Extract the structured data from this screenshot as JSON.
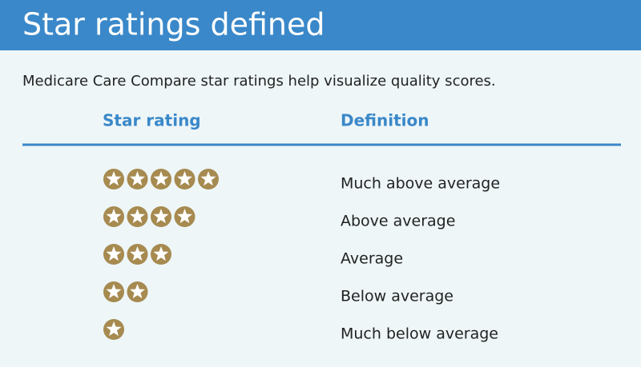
{
  "header": {
    "title": "Star ratings defined"
  },
  "intro": "Medicare Care Compare star ratings help visualize quality scores.",
  "table": {
    "columns": [
      "Star rating",
      "Definition"
    ],
    "rows": [
      {
        "stars": 5,
        "definition": "Much above average"
      },
      {
        "stars": 4,
        "definition": "Above average"
      },
      {
        "stars": 3,
        "definition": "Average"
      },
      {
        "stars": 2,
        "definition": "Below average"
      },
      {
        "stars": 1,
        "definition": "Much below average"
      }
    ]
  }
}
